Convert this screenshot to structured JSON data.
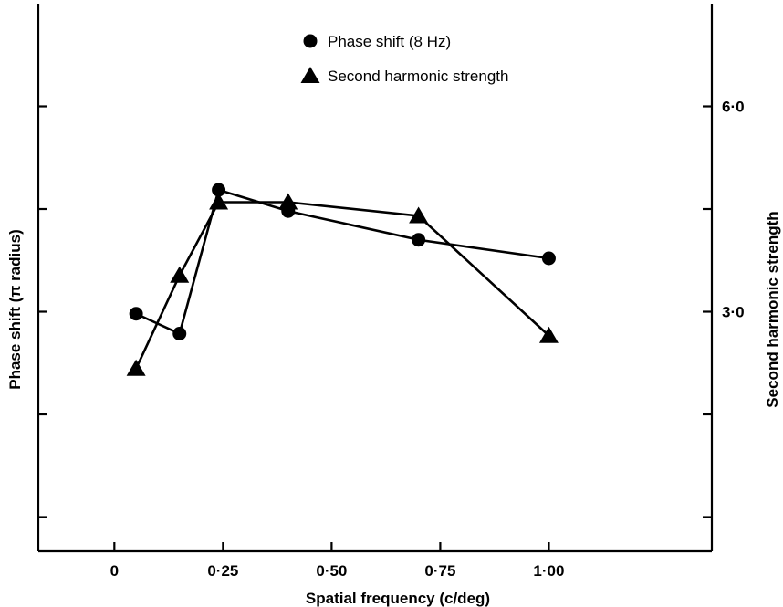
{
  "chart_data": {
    "type": "line",
    "title": "",
    "xlabel": "Spatial frequency (c/deg)",
    "ylabel_left": "Phase shift (π radius)",
    "ylabel_right": "Second harmonic strength",
    "x_ticks": [
      {
        "value": 0,
        "label": "0"
      },
      {
        "value": 0.25,
        "label": "0·25"
      },
      {
        "value": 0.5,
        "label": "0·50"
      },
      {
        "value": 0.75,
        "label": "0·75"
      },
      {
        "value": 1.0,
        "label": "1·00"
      }
    ],
    "xlim": [
      -0.175,
      1.375
    ],
    "y_right_ticks": [
      {
        "value": 1.5,
        "label": ""
      },
      {
        "value": 3.0,
        "label": "3·0"
      },
      {
        "value": 4.5,
        "label": ""
      },
      {
        "value": 6.0,
        "label": "6·0"
      }
    ],
    "y_right_extra_ticks": [
      0.0
    ],
    "y_left_tick_positions": [
      0.0,
      1.5,
      3.0,
      4.5,
      6.0
    ],
    "ylim": [
      -0.5,
      7.5
    ],
    "grid": false,
    "legend": {
      "placement": "top-center",
      "entries": [
        {
          "marker": "circle",
          "label": "Phase shift (8 Hz)"
        },
        {
          "marker": "triangle",
          "label": "Second harmonic strength"
        }
      ]
    },
    "series": [
      {
        "name": "Phase shift (8 Hz)",
        "marker": "circle",
        "points": [
          [
            0.05,
            2.97
          ],
          [
            0.15,
            2.68
          ],
          [
            0.24,
            4.78
          ],
          [
            0.4,
            4.47
          ],
          [
            0.7,
            4.05
          ],
          [
            1.0,
            3.78
          ]
        ]
      },
      {
        "name": "Second harmonic strength",
        "marker": "triangle",
        "points": [
          [
            0.05,
            2.17
          ],
          [
            0.15,
            3.53
          ],
          [
            0.24,
            4.6
          ],
          [
            0.4,
            4.6
          ],
          [
            0.7,
            4.4
          ],
          [
            1.0,
            2.65
          ]
        ]
      }
    ]
  }
}
